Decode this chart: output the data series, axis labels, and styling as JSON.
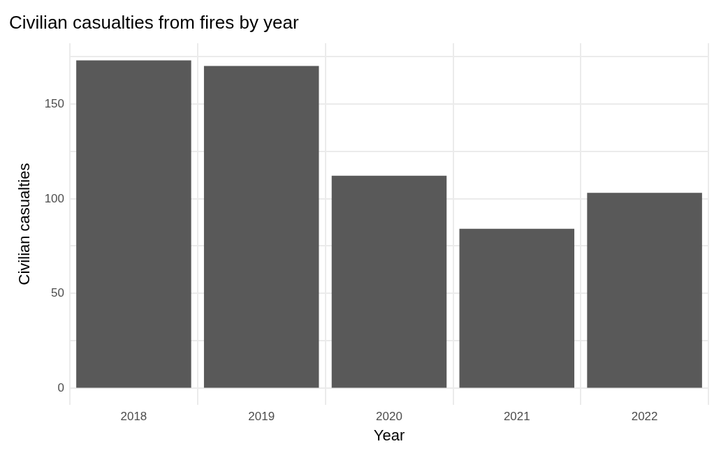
{
  "chart_data": {
    "type": "bar",
    "title": "Civilian casualties from fires by year",
    "xlabel": "Year",
    "ylabel": "Civilian casualties",
    "categories": [
      "2018",
      "2019",
      "2020",
      "2021",
      "2022"
    ],
    "values": [
      173,
      170,
      112,
      84,
      103
    ],
    "color": "#595959",
    "ylim": [
      -9,
      182
    ],
    "yticks": [
      0,
      {
        "value": 25,
        "label": null
      },
      50,
      {
        "value": 75,
        "label": null
      },
      100,
      {
        "value": 125,
        "label": null
      },
      150,
      {
        "value": 175,
        "label": null
      }
    ],
    "grid": true
  }
}
